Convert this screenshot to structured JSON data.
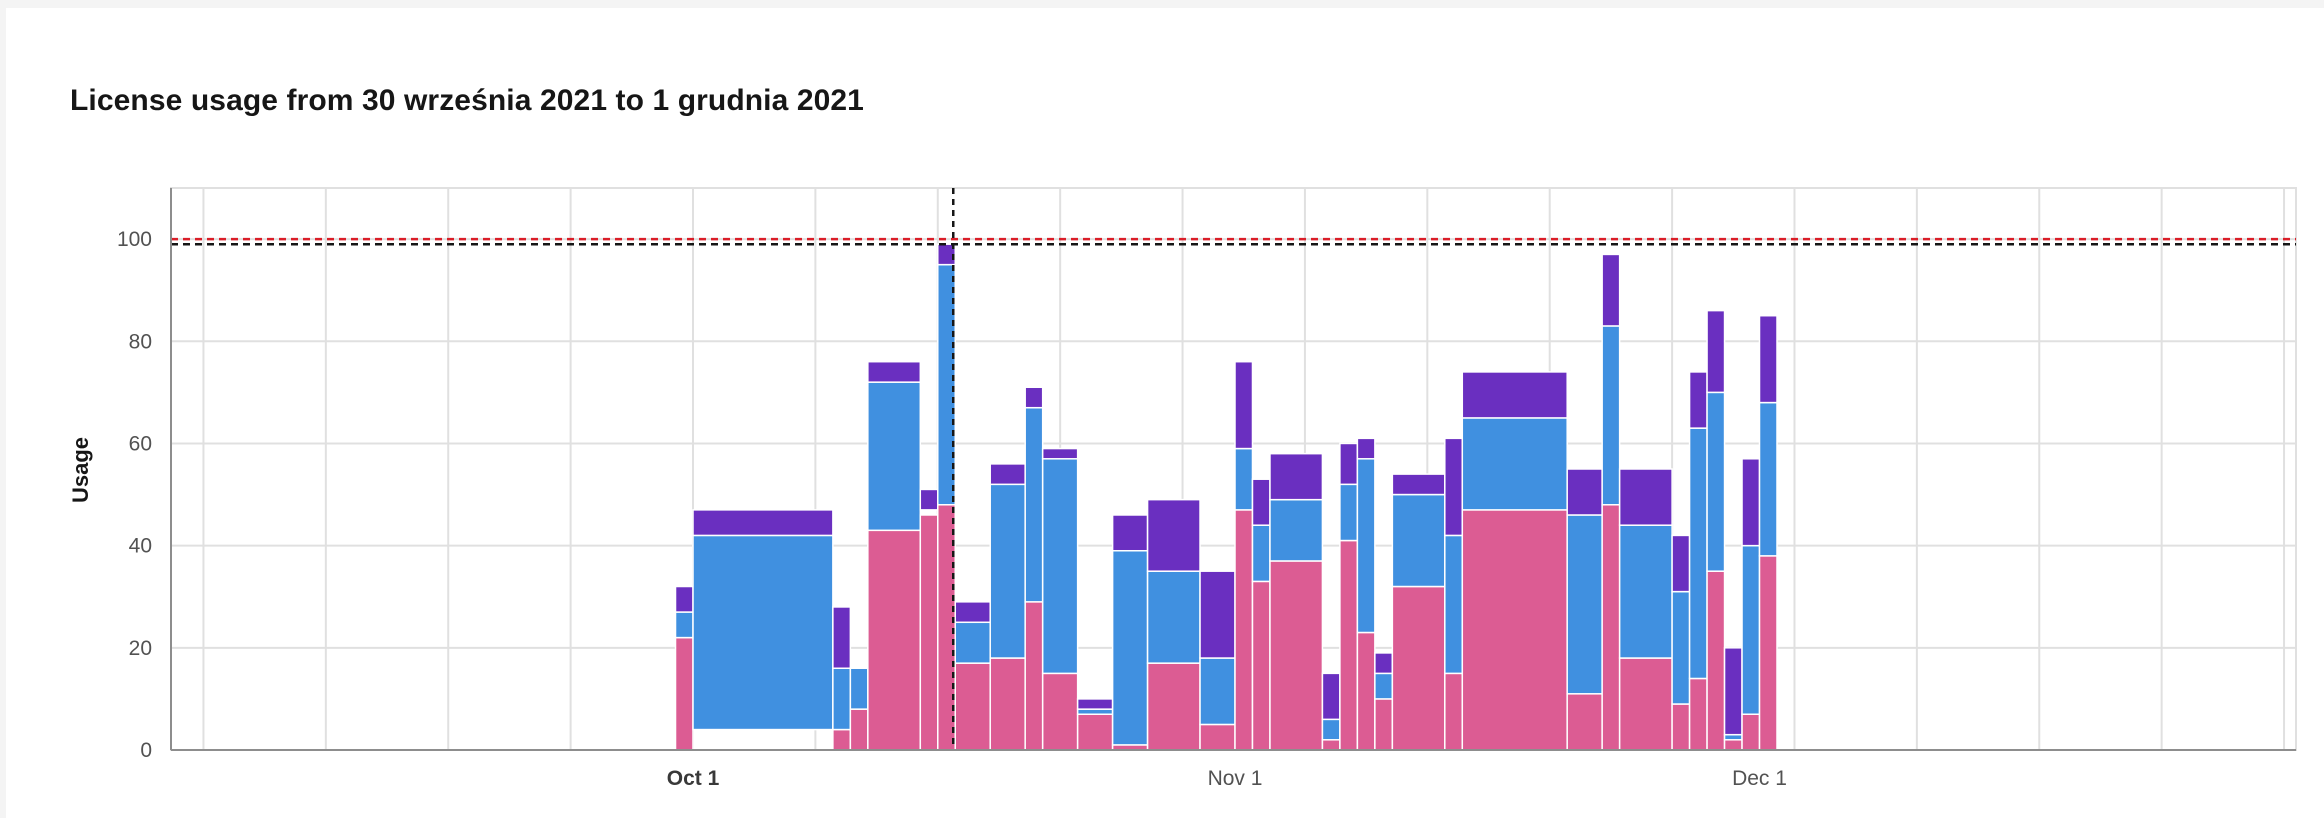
{
  "chart_data": {
    "type": "bar",
    "stacked": true,
    "title": "License usage from 30 września 2021 to 1 grudnia 2021",
    "ylabel": "Usage",
    "xlabel": "",
    "ylim": [
      0,
      110
    ],
    "y_ticks": [
      0,
      20,
      40,
      60,
      80,
      100
    ],
    "x_ticks": [
      {
        "label": "Oct 1",
        "date": "2021-10-01",
        "bold": true
      },
      {
        "label": "Nov 1",
        "date": "2021-11-01",
        "bold": false
      },
      {
        "label": "Dec 1",
        "date": "2021-12-01",
        "bold": false
      }
    ],
    "x_range": [
      "2021-09-01",
      "2022-01-01"
    ],
    "grid": true,
    "legend": "none",
    "thresholds": [
      {
        "value": 100,
        "color": "#da1e28"
      },
      {
        "value": 99,
        "color": "#161616"
      }
    ],
    "marker_date": "2021-10-16",
    "series_colors": {
      "bottom": "#dc5c93",
      "middle": "#4090e0",
      "top": "#6a2fc0"
    },
    "bars": [
      {
        "start": "2021-09-30",
        "end": "2021-10-01",
        "segments": [
          [
            0,
            22,
            "bottom"
          ],
          [
            22,
            27,
            "middle"
          ],
          [
            27,
            32,
            "top"
          ]
        ]
      },
      {
        "start": "2021-10-01",
        "end": "2021-10-09",
        "segments": [
          [
            4,
            42,
            "middle"
          ],
          [
            42,
            47,
            "top"
          ]
        ]
      },
      {
        "start": "2021-10-09",
        "end": "2021-10-10",
        "segments": [
          [
            0,
            4,
            "bottom"
          ],
          [
            4,
            16,
            "middle"
          ],
          [
            16,
            28,
            "top"
          ]
        ]
      },
      {
        "start": "2021-10-10",
        "end": "2021-10-11",
        "segments": [
          [
            0,
            8,
            "bottom"
          ],
          [
            8,
            16,
            "middle"
          ]
        ]
      },
      {
        "start": "2021-10-11",
        "end": "2021-10-14",
        "segments": [
          [
            0,
            43,
            "bottom"
          ],
          [
            43,
            72,
            "middle"
          ],
          [
            72,
            76,
            "top"
          ]
        ]
      },
      {
        "start": "2021-10-14",
        "end": "2021-10-15",
        "segments": [
          [
            0,
            46,
            "bottom"
          ],
          [
            47,
            51,
            "top"
          ]
        ]
      },
      {
        "start": "2021-10-15",
        "end": "2021-10-16",
        "segments": [
          [
            0,
            48,
            "bottom"
          ],
          [
            48,
            95,
            "middle"
          ],
          [
            95,
            99,
            "top"
          ]
        ]
      },
      {
        "start": "2021-10-16",
        "end": "2021-10-18",
        "segments": [
          [
            0,
            17,
            "bottom"
          ],
          [
            17,
            25,
            "middle"
          ],
          [
            25,
            29,
            "top"
          ]
        ]
      },
      {
        "start": "2021-10-18",
        "end": "2021-10-20",
        "segments": [
          [
            0,
            18,
            "bottom"
          ],
          [
            18,
            52,
            "middle"
          ],
          [
            52,
            56,
            "top"
          ]
        ]
      },
      {
        "start": "2021-10-20",
        "end": "2021-10-21",
        "segments": [
          [
            0,
            29,
            "bottom"
          ],
          [
            29,
            67,
            "middle"
          ],
          [
            67,
            71,
            "top"
          ]
        ]
      },
      {
        "start": "2021-10-21",
        "end": "2021-10-23",
        "segments": [
          [
            0,
            15,
            "bottom"
          ],
          [
            15,
            57,
            "middle"
          ],
          [
            57,
            59,
            "top"
          ]
        ]
      },
      {
        "start": "2021-10-23",
        "end": "2021-10-25",
        "segments": [
          [
            0,
            7,
            "bottom"
          ],
          [
            7,
            8,
            "middle"
          ],
          [
            8,
            10,
            "top"
          ]
        ]
      },
      {
        "start": "2021-10-25",
        "end": "2021-10-27",
        "segments": [
          [
            0,
            1,
            "bottom"
          ],
          [
            1,
            39,
            "middle"
          ],
          [
            39,
            46,
            "top"
          ]
        ]
      },
      {
        "start": "2021-10-27",
        "end": "2021-10-30",
        "segments": [
          [
            0,
            17,
            "bottom"
          ],
          [
            17,
            35,
            "middle"
          ],
          [
            35,
            49,
            "top"
          ]
        ]
      },
      {
        "start": "2021-10-30",
        "end": "2021-11-01",
        "segments": [
          [
            0,
            5,
            "bottom"
          ],
          [
            5,
            18,
            "middle"
          ],
          [
            18,
            35,
            "top"
          ]
        ]
      },
      {
        "start": "2021-11-01",
        "end": "2021-11-02",
        "segments": [
          [
            0,
            47,
            "bottom"
          ],
          [
            47,
            59,
            "middle"
          ],
          [
            59,
            76,
            "top"
          ]
        ]
      },
      {
        "start": "2021-11-02",
        "end": "2021-11-03",
        "segments": [
          [
            0,
            33,
            "bottom"
          ],
          [
            33,
            44,
            "middle"
          ],
          [
            44,
            53,
            "top"
          ]
        ]
      },
      {
        "start": "2021-11-03",
        "end": "2021-11-06",
        "segments": [
          [
            0,
            37,
            "bottom"
          ],
          [
            37,
            49,
            "middle"
          ],
          [
            49,
            58,
            "top"
          ]
        ]
      },
      {
        "start": "2021-11-06",
        "end": "2021-11-07",
        "segments": [
          [
            0,
            2,
            "bottom"
          ],
          [
            2,
            6,
            "middle"
          ],
          [
            6,
            15,
            "top"
          ]
        ]
      },
      {
        "start": "2021-11-07",
        "end": "2021-11-08",
        "segments": [
          [
            0,
            41,
            "bottom"
          ],
          [
            41,
            52,
            "middle"
          ],
          [
            52,
            60,
            "top"
          ]
        ]
      },
      {
        "start": "2021-11-08",
        "end": "2021-11-09",
        "segments": [
          [
            0,
            23,
            "bottom"
          ],
          [
            23,
            57,
            "middle"
          ],
          [
            57,
            61,
            "top"
          ]
        ]
      },
      {
        "start": "2021-11-09",
        "end": "2021-11-10",
        "segments": [
          [
            0,
            10,
            "bottom"
          ],
          [
            10,
            15,
            "middle"
          ],
          [
            15,
            19,
            "top"
          ]
        ]
      },
      {
        "start": "2021-11-10",
        "end": "2021-11-13",
        "segments": [
          [
            0,
            32,
            "bottom"
          ],
          [
            32,
            50,
            "middle"
          ],
          [
            50,
            54,
            "top"
          ]
        ]
      },
      {
        "start": "2021-11-13",
        "end": "2021-11-14",
        "segments": [
          [
            0,
            15,
            "bottom"
          ],
          [
            15,
            42,
            "middle"
          ],
          [
            42,
            61,
            "top"
          ]
        ]
      },
      {
        "start": "2021-11-14",
        "end": "2021-11-20",
        "segments": [
          [
            0,
            47,
            "bottom"
          ],
          [
            47,
            65,
            "middle"
          ],
          [
            65,
            74,
            "top"
          ]
        ]
      },
      {
        "start": "2021-11-20",
        "end": "2021-11-22",
        "segments": [
          [
            0,
            11,
            "bottom"
          ],
          [
            11,
            46,
            "middle"
          ],
          [
            46,
            55,
            "top"
          ]
        ]
      },
      {
        "start": "2021-11-22",
        "end": "2021-11-23",
        "segments": [
          [
            0,
            48,
            "bottom"
          ],
          [
            48,
            83,
            "middle"
          ],
          [
            83,
            97,
            "top"
          ]
        ]
      },
      {
        "start": "2021-11-23",
        "end": "2021-11-26",
        "segments": [
          [
            0,
            18,
            "bottom"
          ],
          [
            18,
            44,
            "middle"
          ],
          [
            44,
            55,
            "top"
          ]
        ]
      },
      {
        "start": "2021-11-26",
        "end": "2021-11-27",
        "segments": [
          [
            0,
            9,
            "bottom"
          ],
          [
            9,
            31,
            "middle"
          ],
          [
            31,
            42,
            "top"
          ]
        ]
      },
      {
        "start": "2021-11-27",
        "end": "2021-11-28",
        "segments": [
          [
            0,
            14,
            "bottom"
          ],
          [
            14,
            63,
            "middle"
          ],
          [
            63,
            74,
            "top"
          ]
        ]
      },
      {
        "start": "2021-11-28",
        "end": "2021-11-29",
        "segments": [
          [
            0,
            35,
            "bottom"
          ],
          [
            35,
            70,
            "middle"
          ],
          [
            70,
            86,
            "top"
          ]
        ]
      },
      {
        "start": "2021-11-29",
        "end": "2021-11-30",
        "segments": [
          [
            0,
            2,
            "bottom"
          ],
          [
            2,
            3,
            "middle"
          ],
          [
            3,
            20,
            "top"
          ]
        ]
      },
      {
        "start": "2021-11-30",
        "end": "2021-12-01",
        "segments": [
          [
            0,
            7,
            "bottom"
          ],
          [
            7,
            40,
            "middle"
          ],
          [
            40,
            57,
            "top"
          ]
        ]
      },
      {
        "start": "2021-12-01",
        "end": "2021-12-02",
        "segments": [
          [
            0,
            38,
            "bottom"
          ],
          [
            38,
            68,
            "middle"
          ],
          [
            68,
            85,
            "top"
          ]
        ]
      }
    ]
  }
}
